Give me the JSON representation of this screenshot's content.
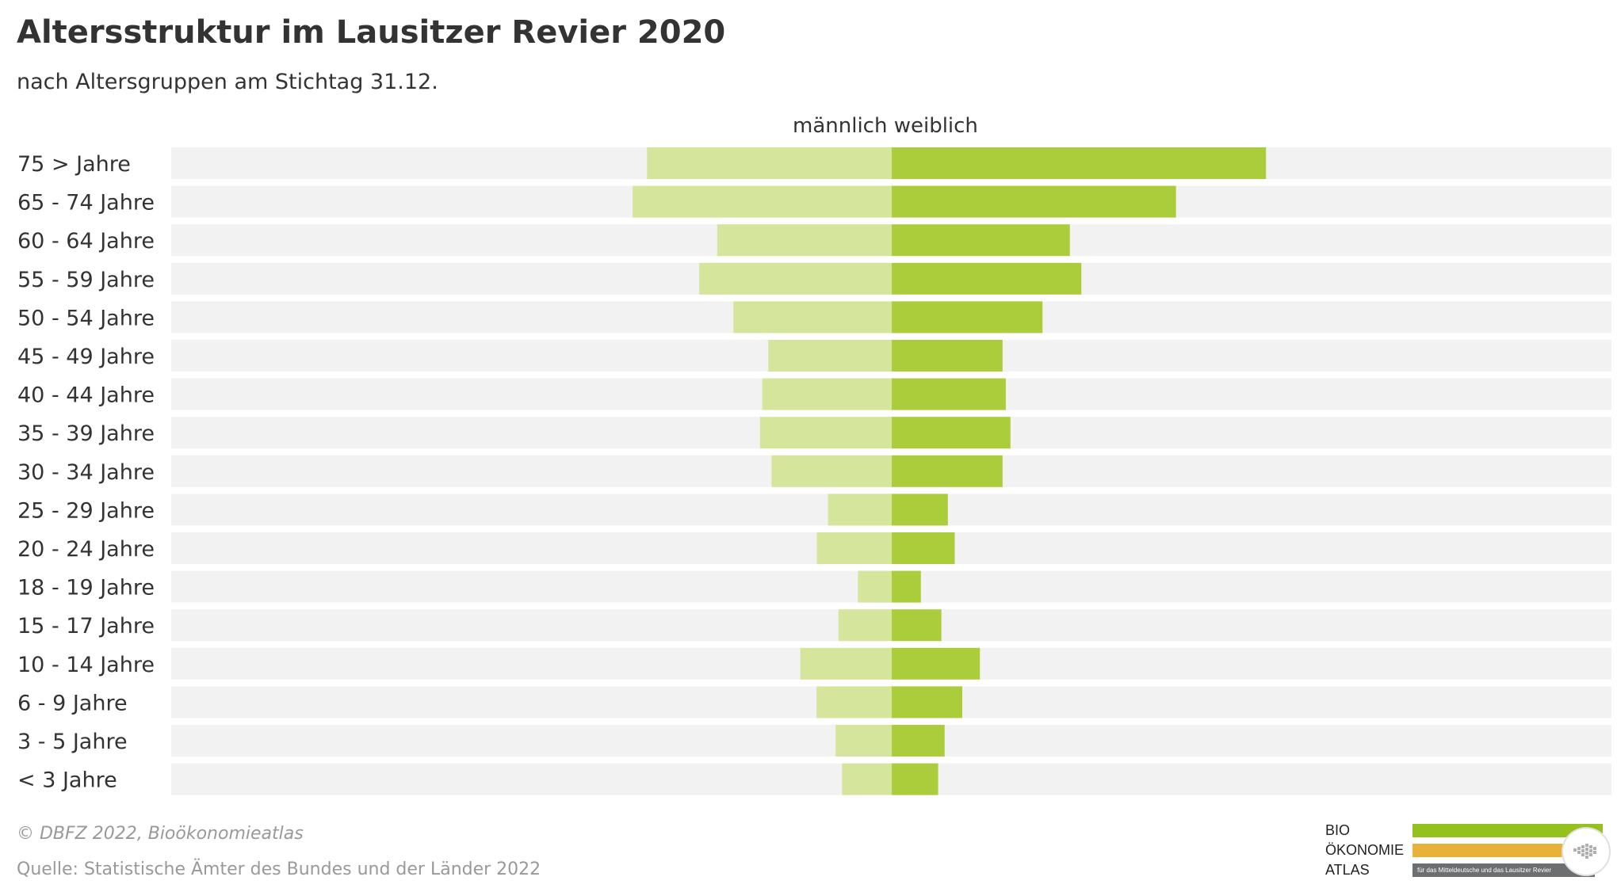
{
  "header": {
    "title": "Altersstruktur im Lausitzer Revier 2020",
    "subtitle": "nach Altersgruppen am Stichtag 31.12."
  },
  "legend": {
    "male": "männlich",
    "female": "weiblich"
  },
  "colors": {
    "male": "#d5e59c",
    "female": "#abcd3c",
    "track": "#f2f2f2",
    "logo_green": "#95c11f",
    "logo_orange": "#e8b23a",
    "logo_grey": "#6d6e70"
  },
  "chart_data": {
    "type": "bar",
    "orientation": "horizontal-diverging",
    "categories": [
      "75 > Jahre",
      "65 - 74 Jahre",
      "60 - 64 Jahre",
      "55 - 59 Jahre",
      "50 - 54 Jahre",
      "45 - 49 Jahre",
      "40 - 44 Jahre",
      "35 - 39 Jahre",
      "30 - 34 Jahre",
      "25 - 29 Jahre",
      "20 - 24 Jahre",
      "18 - 19 Jahre",
      "15 - 17 Jahre",
      "10 - 14 Jahre",
      "6 - 9 Jahre",
      "3 - 5 Jahre",
      "< 3 Jahre"
    ],
    "series": [
      {
        "name": "männlich",
        "values": [
          68000,
          72000,
          48500,
          53500,
          44000,
          34300,
          36000,
          36600,
          33400,
          17700,
          20800,
          9400,
          14800,
          25400,
          20900,
          15600,
          13800
        ]
      },
      {
        "name": "weiblich",
        "values": [
          104000,
          79000,
          49500,
          52700,
          41900,
          30800,
          31700,
          33000,
          30800,
          15600,
          17500,
          8100,
          13800,
          24500,
          19600,
          14700,
          12900
        ]
      }
    ],
    "xlim": [
      -200000,
      200000
    ],
    "grid": false,
    "legend": "top-center"
  },
  "footer": {
    "copyright": "© DBFZ 2022, Bioökonomieatlas",
    "source": "Quelle: Statistische Ämter des Bundes und der Länder 2022"
  },
  "logo": {
    "line1": "BIO",
    "line2": "ÖKONOMIE",
    "line3": "ATLAS",
    "tagline": "für das Mitteldeutsche und das Lausitzer Revier"
  }
}
